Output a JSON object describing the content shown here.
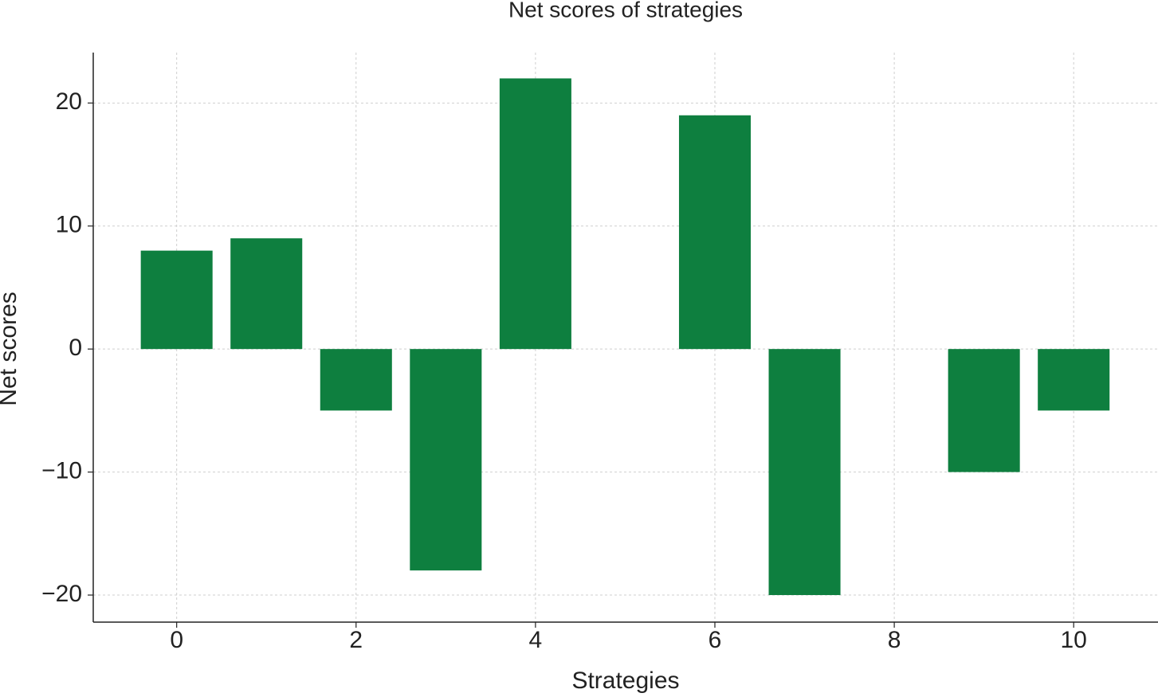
{
  "chart_data": {
    "type": "bar",
    "title": "Net scores of strategies",
    "x_label": "Strategies",
    "y_label": "Net scores",
    "x": [
      0,
      1,
      2,
      3,
      4,
      5,
      6,
      7,
      8,
      9,
      10
    ],
    "values": [
      8,
      9,
      -5,
      -18,
      22,
      0,
      19,
      -20,
      0,
      -10,
      -5
    ],
    "color": "#0e7f3f",
    "xlim": [
      -0.93,
      10.94
    ],
    "xticks": [
      0,
      2,
      4,
      6,
      8,
      10
    ],
    "ylim": [
      -22.2,
      24.1
    ],
    "yticks": [
      {
        "value": -20,
        "label": "−20"
      },
      {
        "value": -10,
        "label": "−10"
      },
      0,
      10,
      20
    ],
    "grid": true
  }
}
